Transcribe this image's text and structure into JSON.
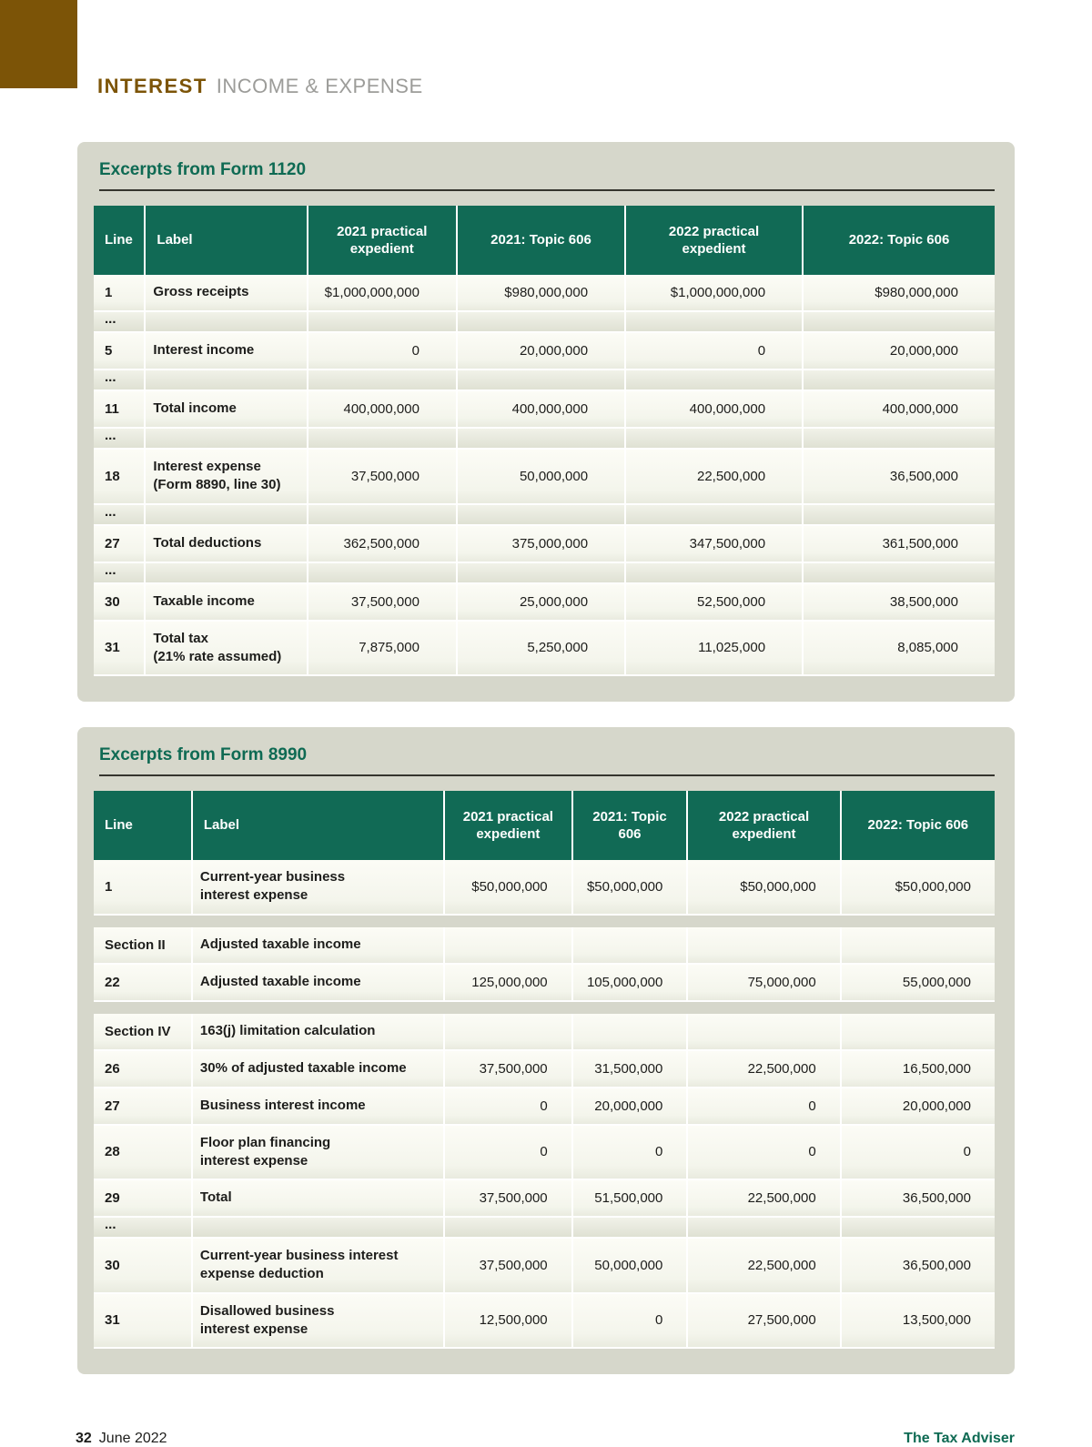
{
  "page": {
    "kicker_bold": "INTEREST",
    "kicker_rest": "INCOME & EXPENSE",
    "footer_page": "32",
    "footer_date": "June 2022",
    "footer_brand": "The Tax Adviser"
  },
  "colors": {
    "accent_green": "#116a55",
    "title_green": "#0e6a53",
    "brown": "#7c5407",
    "kicker_gray": "#9c9c99",
    "card_bg": "#d6d7cb"
  },
  "tables": [
    {
      "title": "Excerpts from Form 1120",
      "columns": [
        "Line",
        "Label",
        "2021 practical expedient",
        "2021: Topic 606",
        "2022 practical expedient",
        "2022: Topic 606"
      ],
      "rows": [
        {
          "line": "1",
          "label": [
            "Gross receipts"
          ],
          "values": [
            "$1,000,000,000",
            "$980,000,000",
            "$1,000,000,000",
            "$980,000,000"
          ]
        },
        {
          "type": "ellipsis",
          "line": "..."
        },
        {
          "line": "5",
          "label": [
            "Interest income"
          ],
          "values": [
            "0",
            "20,000,000",
            "0",
            "20,000,000"
          ]
        },
        {
          "type": "ellipsis",
          "line": "..."
        },
        {
          "line": "11",
          "label": [
            "Total income"
          ],
          "values": [
            "400,000,000",
            "400,000,000",
            "400,000,000",
            "400,000,000"
          ]
        },
        {
          "type": "ellipsis",
          "line": "..."
        },
        {
          "line": "18",
          "label": [
            "Interest expense",
            "(Form 8890, line 30)"
          ],
          "values": [
            "37,500,000",
            "50,000,000",
            "22,500,000",
            "36,500,000"
          ]
        },
        {
          "type": "ellipsis",
          "line": "..."
        },
        {
          "line": "27",
          "label": [
            "Total deductions"
          ],
          "values": [
            "362,500,000",
            "375,000,000",
            "347,500,000",
            "361,500,000"
          ]
        },
        {
          "type": "ellipsis",
          "line": "..."
        },
        {
          "line": "30",
          "label": [
            "Taxable income"
          ],
          "values": [
            "37,500,000",
            "25,000,000",
            "52,500,000",
            "38,500,000"
          ]
        },
        {
          "line": "31",
          "label": [
            "Total tax",
            "(21% rate assumed)"
          ],
          "values": [
            "7,875,000",
            "5,250,000",
            "11,025,000",
            "8,085,000"
          ]
        }
      ]
    },
    {
      "title": "Excerpts from Form 8990",
      "columns": [
        "Line",
        "Label",
        "2021 practical expedient",
        "2021: Topic 606",
        "2022 practical expedient",
        "2022: Topic 606"
      ],
      "rows": [
        {
          "line": "1",
          "label": [
            "Current-year business",
            "interest expense"
          ],
          "values": [
            "$50,000,000",
            "$50,000,000",
            "$50,000,000",
            "$50,000,000"
          ]
        },
        {
          "type": "spacer"
        },
        {
          "type": "section",
          "line": "Section II",
          "label": [
            "Adjusted taxable income"
          ]
        },
        {
          "line": "22",
          "label": [
            "Adjusted taxable income"
          ],
          "values": [
            "125,000,000",
            "105,000,000",
            "75,000,000",
            "55,000,000"
          ]
        },
        {
          "type": "spacer"
        },
        {
          "type": "section",
          "line": "Section IV",
          "label": [
            "163(j) limitation calculation"
          ]
        },
        {
          "line": "26",
          "label": [
            "30% of adjusted taxable income"
          ],
          "values": [
            "37,500,000",
            "31,500,000",
            "22,500,000",
            "16,500,000"
          ]
        },
        {
          "line": "27",
          "label": [
            "Business interest income"
          ],
          "values": [
            "0",
            "20,000,000",
            "0",
            "20,000,000"
          ]
        },
        {
          "line": "28",
          "label": [
            "Floor plan financing",
            "interest expense"
          ],
          "values": [
            "0",
            "0",
            "0",
            "0"
          ]
        },
        {
          "line": "29",
          "label": [
            "Total"
          ],
          "values": [
            "37,500,000",
            "51,500,000",
            "22,500,000",
            "36,500,000"
          ]
        },
        {
          "type": "ellipsis",
          "line": "..."
        },
        {
          "line": "30",
          "label": [
            "Current-year business interest",
            "expense deduction"
          ],
          "values": [
            "37,500,000",
            "50,000,000",
            "22,500,000",
            "36,500,000"
          ]
        },
        {
          "line": "31",
          "label": [
            "Disallowed business",
            "interest expense"
          ],
          "values": [
            "12,500,000",
            "0",
            "27,500,000",
            "13,500,000"
          ]
        }
      ]
    }
  ]
}
